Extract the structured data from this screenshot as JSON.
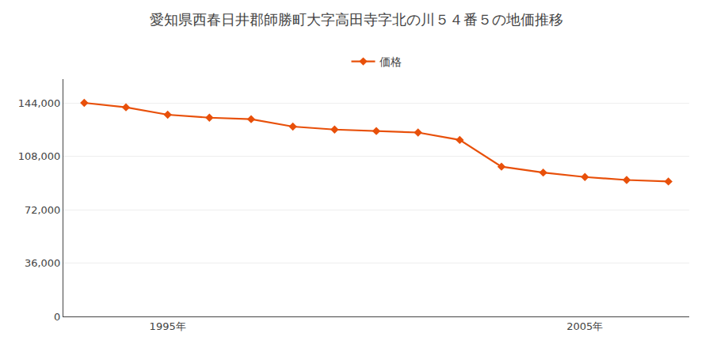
{
  "chart_data": {
    "type": "line",
    "title": "愛知県西春日井郡師勝町大字高田寺字北の川５４番５の地価推移",
    "x": [
      1993,
      1994,
      1995,
      1996,
      1997,
      1998,
      1999,
      2000,
      2001,
      2002,
      2003,
      2004,
      2005,
      2006,
      2007
    ],
    "series": [
      {
        "name": "価格",
        "color": "#e8500a",
        "marker": "diamond",
        "values": [
          144000,
          141000,
          136000,
          134000,
          133000,
          128000,
          126000,
          125000,
          124000,
          119000,
          101000,
          97000,
          94000,
          92000,
          91000
        ]
      }
    ],
    "xlim": [
      1992.5,
      2007.5
    ],
    "xticks": [
      {
        "value": 1995,
        "label": "1995年"
      },
      {
        "value": 2005,
        "label": "2005年"
      }
    ],
    "ylim": [
      0,
      160000
    ],
    "yticks": [
      0,
      {
        "value": 36000,
        "label": "36,000"
      },
      {
        "value": 72000,
        "label": "72,000"
      },
      {
        "value": 108000,
        "label": "108,000"
      },
      {
        "value": 144000,
        "label": "144,000"
      }
    ],
    "grid": "y",
    "legend": "top"
  }
}
